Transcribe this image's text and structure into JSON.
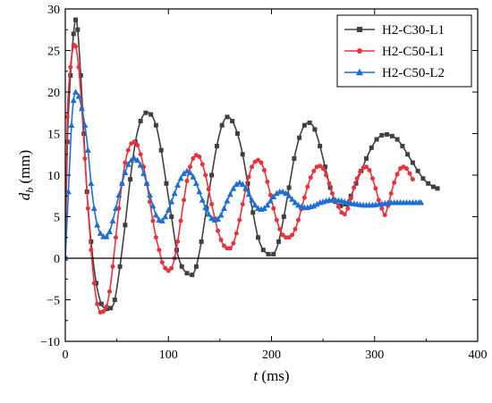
{
  "chart_data": {
    "type": "line",
    "xlabel_var": "t",
    "xlabel_unit": " (ms)",
    "ylabel_var": "d",
    "ylabel_sub": "b",
    "ylabel_unit": " (mm)",
    "xlim": [
      0,
      400
    ],
    "ylim": [
      -10,
      30
    ],
    "xticks": [
      0,
      100,
      200,
      300,
      400
    ],
    "yticks": [
      -10,
      -5,
      0,
      5,
      10,
      15,
      20,
      25,
      30
    ],
    "xtick_labels": [
      "0",
      "100",
      "200",
      "300",
      "400"
    ],
    "ytick_labels": [
      "−10",
      "−5",
      "0",
      "5",
      "10",
      "15",
      "20",
      "25",
      "30"
    ],
    "zero_line": true,
    "grid": false,
    "legend_position": "top-right",
    "series": [
      {
        "name": "H2-C30-L1",
        "color": "#404040",
        "marker": "square",
        "points": [
          [
            0,
            0
          ],
          [
            2,
            14
          ],
          [
            5,
            22
          ],
          [
            8,
            27
          ],
          [
            10,
            28.7
          ],
          [
            12,
            27.5
          ],
          [
            15,
            22
          ],
          [
            18,
            15
          ],
          [
            21,
            8
          ],
          [
            25,
            2
          ],
          [
            30,
            -3
          ],
          [
            35,
            -5.5
          ],
          [
            40,
            -6.1
          ],
          [
            44,
            -6.0
          ],
          [
            48,
            -5
          ],
          [
            53,
            -1
          ],
          [
            58,
            4
          ],
          [
            63,
            9.5
          ],
          [
            68,
            14
          ],
          [
            73,
            16.5
          ],
          [
            78,
            17.5
          ],
          [
            83,
            17.3
          ],
          [
            88,
            16
          ],
          [
            93,
            13
          ],
          [
            98,
            9
          ],
          [
            103,
            5
          ],
          [
            108,
            1
          ],
          [
            113,
            -1
          ],
          [
            118,
            -1.8
          ],
          [
            123,
            -2
          ],
          [
            127,
            -1
          ],
          [
            132,
            2
          ],
          [
            137,
            6
          ],
          [
            142,
            10
          ],
          [
            147,
            13.5
          ],
          [
            152,
            16
          ],
          [
            157,
            17
          ],
          [
            162,
            16.5
          ],
          [
            167,
            15
          ],
          [
            172,
            12.5
          ],
          [
            177,
            9
          ],
          [
            182,
            5.5
          ],
          [
            187,
            2.5
          ],
          [
            192,
            1
          ],
          [
            197,
            0.5
          ],
          [
            202,
            0.5
          ],
          [
            207,
            2
          ],
          [
            212,
            5
          ],
          [
            217,
            8.5
          ],
          [
            222,
            12
          ],
          [
            227,
            14.5
          ],
          [
            232,
            16
          ],
          [
            237,
            16.3
          ],
          [
            242,
            15.5
          ],
          [
            247,
            13.5
          ],
          [
            252,
            11
          ],
          [
            257,
            8.5
          ],
          [
            262,
            6.8
          ],
          [
            267,
            6.3
          ],
          [
            272,
            6.5
          ],
          [
            277,
            7.5
          ],
          [
            282,
            9
          ],
          [
            287,
            10.5
          ],
          [
            292,
            12
          ],
          [
            297,
            13.3
          ],
          [
            302,
            14.3
          ],
          [
            307,
            14.8
          ],
          [
            312,
            14.9
          ],
          [
            317,
            14.7
          ],
          [
            322,
            14.3
          ],
          [
            327,
            13.5
          ],
          [
            332,
            12.5
          ],
          [
            337,
            11.5
          ],
          [
            342,
            10.5
          ],
          [
            347,
            9.6
          ],
          [
            352,
            9
          ],
          [
            357,
            8.6
          ],
          [
            361,
            8.4
          ]
        ]
      },
      {
        "name": "H2-C50-L1",
        "color": "#e8323c",
        "marker": "circle",
        "points": [
          [
            0,
            0
          ],
          [
            2,
            17
          ],
          [
            5,
            23
          ],
          [
            8,
            25.6
          ],
          [
            10,
            25.5
          ],
          [
            13,
            23
          ],
          [
            16,
            18
          ],
          [
            19,
            12
          ],
          [
            22,
            6
          ],
          [
            25,
            1
          ],
          [
            28,
            -3
          ],
          [
            31,
            -5.5
          ],
          [
            34,
            -6.5
          ],
          [
            37,
            -6.4
          ],
          [
            40,
            -5.8
          ],
          [
            43,
            -4
          ],
          [
            46,
            -1
          ],
          [
            49,
            2.5
          ],
          [
            52,
            6
          ],
          [
            55,
            9
          ],
          [
            58,
            11.5
          ],
          [
            61,
            13
          ],
          [
            64,
            13.8
          ],
          [
            67,
            14
          ],
          [
            70,
            13.6
          ],
          [
            73,
            12.5
          ],
          [
            76,
            11
          ],
          [
            79,
            9
          ],
          [
            82,
            6.8
          ],
          [
            85,
            4.5
          ],
          [
            88,
            2.5
          ],
          [
            91,
            1
          ],
          [
            94,
            -0.5
          ],
          [
            97,
            -1.2
          ],
          [
            100,
            -1.5
          ],
          [
            103,
            -1.2
          ],
          [
            106,
            0
          ],
          [
            109,
            2
          ],
          [
            112,
            4.5
          ],
          [
            115,
            7
          ],
          [
            118,
            9.3
          ],
          [
            121,
            11
          ],
          [
            124,
            12
          ],
          [
            127,
            12.4
          ],
          [
            130,
            12.2
          ],
          [
            133,
            11.3
          ],
          [
            136,
            10
          ],
          [
            139,
            8.3
          ],
          [
            142,
            6.5
          ],
          [
            145,
            4.8
          ],
          [
            148,
            3.3
          ],
          [
            151,
            2.2
          ],
          [
            154,
            1.5
          ],
          [
            157,
            1.2
          ],
          [
            160,
            1.2
          ],
          [
            163,
            1.8
          ],
          [
            166,
            3
          ],
          [
            169,
            4.6
          ],
          [
            172,
            6.5
          ],
          [
            175,
            8.3
          ],
          [
            178,
            9.8
          ],
          [
            181,
            11
          ],
          [
            184,
            11.6
          ],
          [
            187,
            11.8
          ],
          [
            190,
            11.5
          ],
          [
            193,
            10.6
          ],
          [
            196,
            9.2
          ],
          [
            199,
            7.6
          ],
          [
            202,
            6
          ],
          [
            205,
            4.6
          ],
          [
            208,
            3.5
          ],
          [
            211,
            2.8
          ],
          [
            214,
            2.5
          ],
          [
            217,
            2.5
          ],
          [
            220,
            2.8
          ],
          [
            223,
            3.5
          ],
          [
            226,
            4.6
          ],
          [
            229,
            5.9
          ],
          [
            232,
            7.3
          ],
          [
            235,
            8.6
          ],
          [
            238,
            9.7
          ],
          [
            241,
            10.5
          ],
          [
            244,
            11
          ],
          [
            247,
            11.1
          ],
          [
            250,
            10.8
          ],
          [
            253,
            10
          ],
          [
            256,
            9
          ],
          [
            259,
            7.8
          ],
          [
            262,
            6.9
          ],
          [
            265,
            6.2
          ],
          [
            268,
            5.5
          ],
          [
            271,
            5.3
          ],
          [
            274,
            6
          ],
          [
            277,
            7.2
          ],
          [
            280,
            8.5
          ],
          [
            283,
            9.6
          ],
          [
            286,
            10.4
          ],
          [
            289,
            10.9
          ],
          [
            292,
            11
          ],
          [
            295,
            10.6
          ],
          [
            298,
            9.6
          ],
          [
            301,
            8.4
          ],
          [
            304,
            7
          ],
          [
            307,
            6
          ],
          [
            310,
            5.2
          ],
          [
            313,
            6.3
          ],
          [
            316,
            7.8
          ],
          [
            319,
            9.1
          ],
          [
            322,
            10.1
          ],
          [
            325,
            10.8
          ],
          [
            328,
            11
          ],
          [
            331,
            10.8
          ],
          [
            334,
            10.2
          ],
          [
            337,
            9.5
          ]
        ]
      },
      {
        "name": "H2-C50-L2",
        "color": "#1f6fd1",
        "marker": "triangle",
        "points": [
          [
            0,
            0
          ],
          [
            3,
            8
          ],
          [
            6,
            16
          ],
          [
            8,
            19
          ],
          [
            10,
            20
          ],
          [
            13,
            19.5
          ],
          [
            16,
            18
          ],
          [
            19,
            16
          ],
          [
            22,
            13
          ],
          [
            25,
            9
          ],
          [
            28,
            6
          ],
          [
            31,
            4
          ],
          [
            34,
            3
          ],
          [
            37,
            2.6
          ],
          [
            40,
            2.6
          ],
          [
            43,
            3.2
          ],
          [
            46,
            4.5
          ],
          [
            49,
            6
          ],
          [
            52,
            7.6
          ],
          [
            55,
            9
          ],
          [
            58,
            10.3
          ],
          [
            61,
            11.3
          ],
          [
            64,
            11.8
          ],
          [
            67,
            12
          ],
          [
            70,
            11.8
          ],
          [
            73,
            11.2
          ],
          [
            76,
            10.2
          ],
          [
            79,
            9
          ],
          [
            82,
            7.6
          ],
          [
            85,
            6.3
          ],
          [
            88,
            5.2
          ],
          [
            91,
            4.6
          ],
          [
            94,
            4.5
          ],
          [
            97,
            5
          ],
          [
            100,
            5.8
          ],
          [
            103,
            6.8
          ],
          [
            106,
            7.8
          ],
          [
            109,
            8.8
          ],
          [
            112,
            9.6
          ],
          [
            115,
            10.2
          ],
          [
            118,
            10.5
          ],
          [
            121,
            10.3
          ],
          [
            124,
            9.8
          ],
          [
            127,
            9
          ],
          [
            130,
            8
          ],
          [
            133,
            7
          ],
          [
            136,
            6.1
          ],
          [
            139,
            5.3
          ],
          [
            142,
            4.8
          ],
          [
            145,
            4.6
          ],
          [
            148,
            4.7
          ],
          [
            151,
            5.2
          ],
          [
            154,
            6
          ],
          [
            157,
            6.9
          ],
          [
            160,
            7.7
          ],
          [
            163,
            8.4
          ],
          [
            166,
            8.9
          ],
          [
            169,
            9.1
          ],
          [
            172,
            8.9
          ],
          [
            175,
            8.4
          ],
          [
            178,
            7.7
          ],
          [
            181,
            7
          ],
          [
            184,
            6.4
          ],
          [
            187,
            6
          ],
          [
            190,
            5.9
          ],
          [
            193,
            6
          ],
          [
            196,
            6.4
          ],
          [
            199,
            6.9
          ],
          [
            202,
            7.4
          ],
          [
            205,
            7.8
          ],
          [
            208,
            8
          ],
          [
            211,
            8
          ],
          [
            214,
            7.8
          ],
          [
            217,
            7.5
          ],
          [
            220,
            7.1
          ],
          [
            223,
            6.7
          ],
          [
            226,
            6.4
          ],
          [
            229,
            6.2
          ],
          [
            232,
            6.1
          ],
          [
            235,
            6.1
          ],
          [
            238,
            6.2
          ],
          [
            241,
            6.3
          ],
          [
            244,
            6.5
          ],
          [
            247,
            6.7
          ],
          [
            250,
            6.8
          ],
          [
            253,
            6.9
          ],
          [
            256,
            7
          ],
          [
            259,
            7
          ],
          [
            262,
            7
          ],
          [
            265,
            6.95
          ],
          [
            268,
            6.9
          ],
          [
            271,
            6.8
          ],
          [
            274,
            6.7
          ],
          [
            277,
            6.6
          ],
          [
            280,
            6.55
          ],
          [
            283,
            6.5
          ],
          [
            286,
            6.45
          ],
          [
            289,
            6.4
          ],
          [
            292,
            6.4
          ],
          [
            295,
            6.4
          ],
          [
            298,
            6.4
          ],
          [
            301,
            6.45
          ],
          [
            304,
            6.5
          ],
          [
            307,
            6.55
          ],
          [
            310,
            6.6
          ],
          [
            313,
            6.65
          ],
          [
            316,
            6.7
          ],
          [
            319,
            6.7
          ],
          [
            322,
            6.7
          ],
          [
            325,
            6.7
          ],
          [
            328,
            6.7
          ],
          [
            331,
            6.7
          ],
          [
            334,
            6.7
          ],
          [
            337,
            6.7
          ],
          [
            340,
            6.7
          ],
          [
            343,
            6.7
          ],
          [
            345,
            6.7
          ]
        ]
      }
    ]
  }
}
